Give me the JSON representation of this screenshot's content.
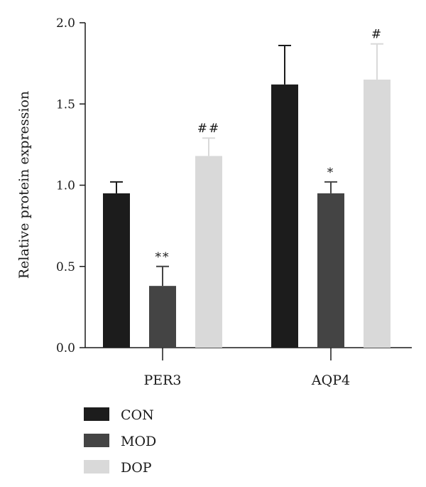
{
  "chart_data": {
    "type": "bar",
    "categories": [
      "PER3",
      "AQP4"
    ],
    "series": [
      {
        "name": "CON",
        "color": "#1c1c1c",
        "values": [
          0.95,
          1.62
        ],
        "errors": [
          0.07,
          0.24
        ],
        "annotations": [
          "",
          ""
        ]
      },
      {
        "name": "MOD",
        "color": "#444444",
        "values": [
          0.38,
          0.95
        ],
        "errors": [
          0.12,
          0.07
        ],
        "annotations": [
          "**",
          "*"
        ]
      },
      {
        "name": "DOP",
        "color": "#d9d9d9",
        "values": [
          1.18,
          1.65
        ],
        "errors": [
          0.11,
          0.22
        ],
        "annotations": [
          "##",
          "#"
        ]
      }
    ],
    "xlabel": "",
    "ylabel": "Relative protein expression",
    "ylim": [
      0,
      2.0
    ],
    "yticks": [
      "0.0",
      "0.5",
      "1.0",
      "1.5",
      "2.0"
    ],
    "grid": false,
    "legend_position": "bottom-left"
  }
}
